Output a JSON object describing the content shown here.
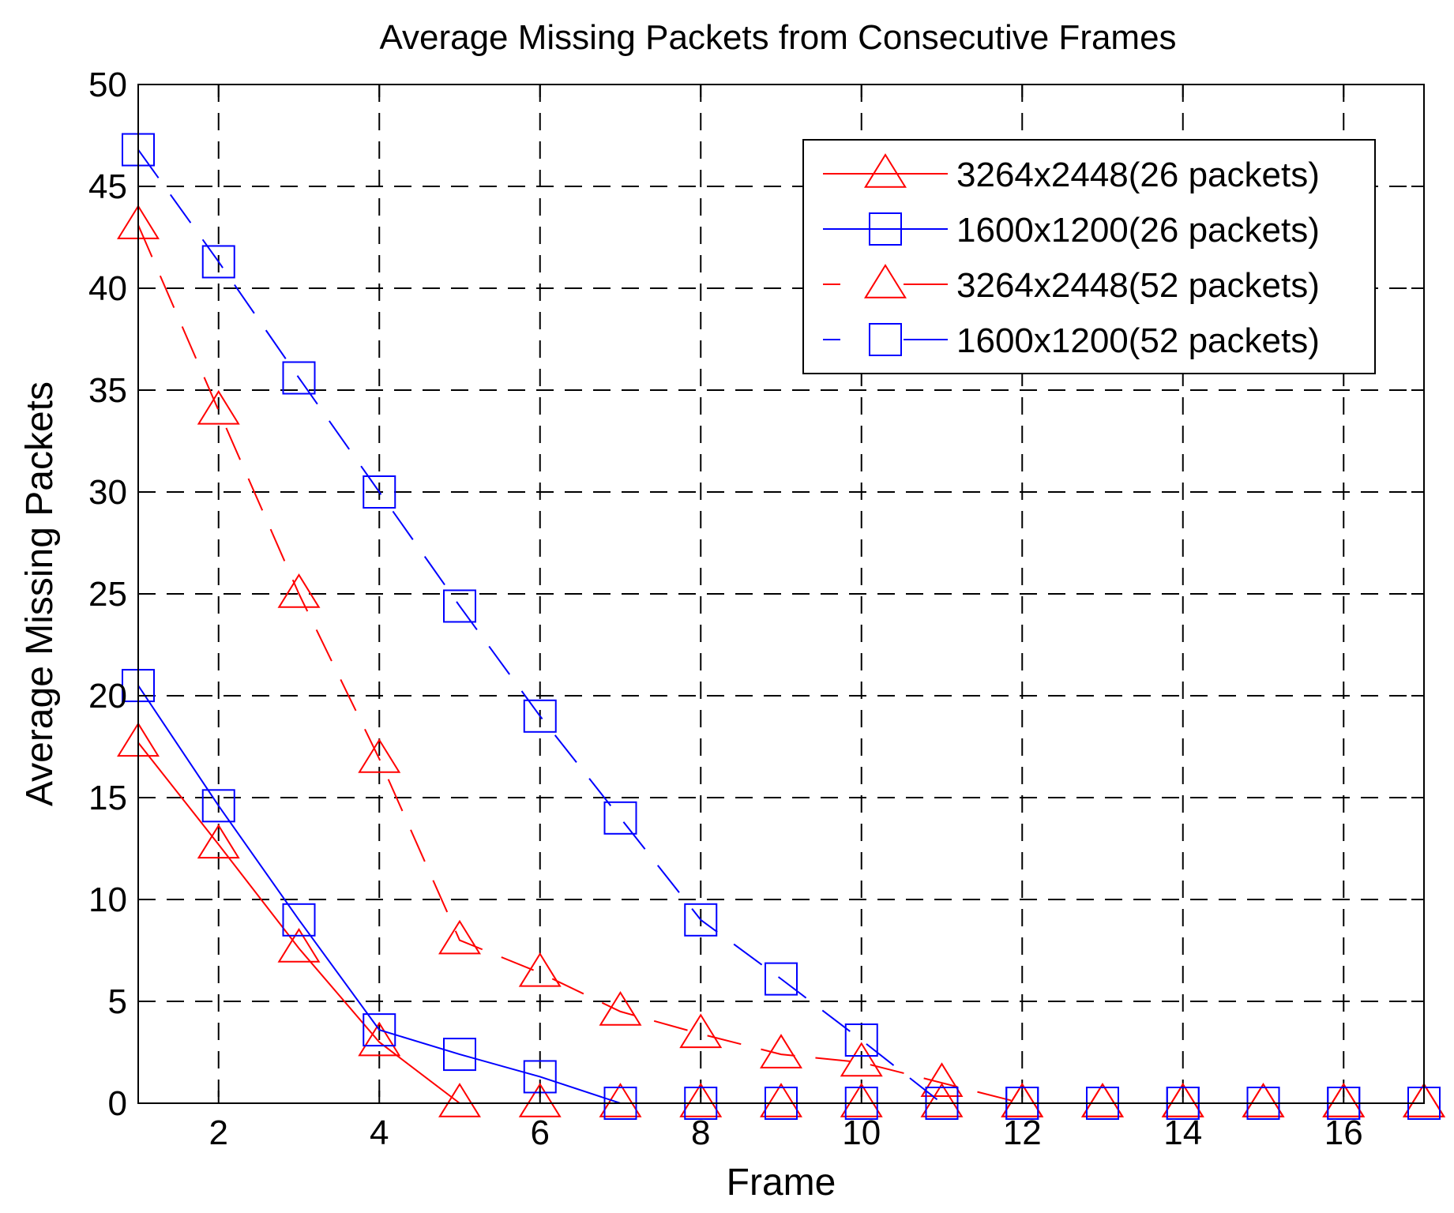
{
  "chart_data": {
    "type": "line",
    "title": "Average Missing Packets from Consecutive Frames",
    "xlabel": "Frame",
    "ylabel": "Average Missing Packets",
    "xlim": [
      1,
      17
    ],
    "ylim": [
      0,
      50
    ],
    "xticks": [
      2,
      4,
      6,
      8,
      10,
      12,
      14,
      16
    ],
    "yticks": [
      0,
      5,
      10,
      15,
      20,
      25,
      30,
      35,
      40,
      45,
      50
    ],
    "grid": true,
    "legend_position": "top-right",
    "x": [
      1,
      2,
      3,
      4,
      5,
      6,
      7,
      8,
      9,
      10,
      11,
      12,
      13,
      14,
      15,
      16,
      17
    ],
    "series": [
      {
        "name": "3264x2448(26 packets)",
        "color": "#ff0000",
        "marker": "triangle",
        "line": "solid",
        "values": [
          17.7,
          12.7,
          7.6,
          3.0,
          0,
          0,
          0,
          0,
          0,
          0,
          0,
          0,
          0,
          0,
          0,
          0,
          0
        ]
      },
      {
        "name": "1600x1200(26 packets)",
        "color": "#0000ff",
        "marker": "square",
        "line": "solid",
        "values": [
          20.5,
          14.6,
          9.0,
          3.6,
          2.4,
          1.3,
          0,
          0,
          0,
          0,
          0,
          0,
          0,
          0,
          0,
          0,
          0
        ]
      },
      {
        "name": "3264x2448(52 packets)",
        "color": "#ff0000",
        "marker": "triangle",
        "line": "dashed",
        "values": [
          43.1,
          34.0,
          25.0,
          16.9,
          8.0,
          6.4,
          4.5,
          3.4,
          2.4,
          2.0,
          1.0,
          0,
          0,
          0,
          0,
          0,
          0
        ]
      },
      {
        "name": "1600x1200(52 packets)",
        "color": "#0000ff",
        "marker": "square",
        "line": "dashed",
        "values": [
          46.8,
          41.3,
          35.6,
          30.0,
          24.4,
          19.0,
          14.0,
          9.0,
          6.1,
          3.1,
          0,
          0,
          0,
          0,
          0,
          0,
          0
        ]
      }
    ]
  }
}
